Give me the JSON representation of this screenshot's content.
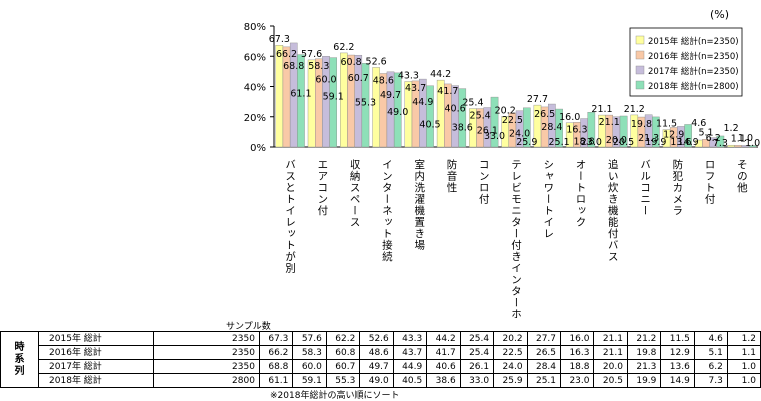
{
  "unit_label": "(%)",
  "sample_label": "サンプル数",
  "group_label": "時系列",
  "footnote": "※2018年総計の高い順にソート",
  "chart_data": {
    "type": "bar",
    "ylim": [
      0,
      80
    ],
    "yticks": [
      "0%",
      "20%",
      "40%",
      "60%",
      "80%"
    ],
    "grid": false,
    "legend_position": "top-right",
    "categories": [
      "バスとトイレットが別",
      "エアコン付",
      "収納スペース",
      "インターネット接続",
      "室内洗濯機置き場",
      "防音性",
      "コンロ付",
      "テレビモニター付きインターホン",
      "シャワートイレ",
      "オートロック",
      "追い炊き機能付バス",
      "バルコニー",
      "防犯カメラ",
      "ロフト付",
      "その他"
    ],
    "series": [
      {
        "name": "2015年 総計(n=2350)",
        "color": "#ffff9f",
        "samples": 2350,
        "values": [
          67.3,
          57.6,
          62.2,
          52.6,
          43.3,
          44.2,
          25.4,
          20.2,
          27.7,
          16.0,
          21.1,
          21.2,
          11.5,
          4.6,
          1.2
        ],
        "labels": [
          "67.3",
          "57.6",
          "62.2",
          "52.6",
          "43.3",
          "44.2",
          "25.4",
          "20.2",
          "27.7",
          "16.0",
          "21.1",
          "21.2",
          "11.5",
          "4.6",
          "1.2"
        ]
      },
      {
        "name": "2016年 総計(n=2350)",
        "color": "#f9c9a7",
        "samples": 2350,
        "values": [
          66.2,
          58.3,
          60.8,
          48.6,
          43.7,
          41.7,
          25.4,
          22.5,
          26.5,
          16.3,
          21.1,
          19.8,
          12.9,
          5.1,
          1.1
        ],
        "labels": [
          "66.2",
          "58.3",
          "60.8",
          "48.6",
          "43.7",
          "41.7",
          "25.4",
          "22.5",
          "26.5",
          "16.3",
          "21.1",
          "19.8",
          "12.9",
          "5.1",
          "1.1"
        ]
      },
      {
        "name": "2017年 総計(n=2350)",
        "color": "#c6bddb",
        "samples": 2350,
        "values": [
          68.8,
          60.0,
          60.7,
          49.7,
          44.9,
          40.6,
          26.1,
          24.0,
          28.4,
          18.8,
          20.0,
          21.3,
          13.6,
          6.2,
          1.0
        ],
        "labels": [
          "68.8",
          "60.0",
          "60.7",
          "49.7",
          "44.9",
          "40.6",
          "26.1",
          "24.0",
          "28.4",
          "18.8",
          "20.0",
          "21.3",
          "13.6",
          "6.2",
          "1.0"
        ]
      },
      {
        "name": "2018年 総計(n=2800)",
        "color": "#8ee0b8",
        "samples": 2800,
        "values": [
          61.1,
          59.1,
          55.3,
          49.0,
          40.5,
          38.6,
          33.0,
          25.9,
          25.1,
          23.0,
          20.5,
          19.9,
          14.9,
          7.3,
          1.0
        ],
        "labels": [
          "61.1",
          "59.1",
          "55.3",
          "49.0",
          "40.5",
          "38.6",
          "33.0",
          "25.9",
          "25.1",
          "23.0",
          "20.5",
          "19.9",
          "14.9",
          "7.3",
          "1.0"
        ]
      }
    ]
  },
  "table": {
    "rows": [
      {
        "label": "2015年 総計",
        "samples": "2350",
        "values": [
          "67.3",
          "57.6",
          "62.2",
          "52.6",
          "43.3",
          "44.2",
          "25.4",
          "20.2",
          "27.7",
          "16.0",
          "21.1",
          "21.2",
          "11.5",
          "4.6",
          "1.2"
        ]
      },
      {
        "label": "2016年 総計",
        "samples": "2350",
        "values": [
          "66.2",
          "58.3",
          "60.8",
          "48.6",
          "43.7",
          "41.7",
          "25.4",
          "22.5",
          "26.5",
          "16.3",
          "21.1",
          "19.8",
          "12.9",
          "5.1",
          "1.1"
        ]
      },
      {
        "label": "2017年 総計",
        "samples": "2350",
        "values": [
          "68.8",
          "60.0",
          "60.7",
          "49.7",
          "44.9",
          "40.6",
          "26.1",
          "24.0",
          "28.4",
          "18.8",
          "20.0",
          "21.3",
          "13.6",
          "6.2",
          "1.0"
        ]
      },
      {
        "label": "2018年 総計",
        "samples": "2800",
        "values": [
          "61.1",
          "59.1",
          "55.3",
          "49.0",
          "40.5",
          "38.6",
          "33.0",
          "25.9",
          "25.1",
          "23.0",
          "20.5",
          "19.9",
          "14.9",
          "7.3",
          "1.0"
        ]
      }
    ]
  }
}
